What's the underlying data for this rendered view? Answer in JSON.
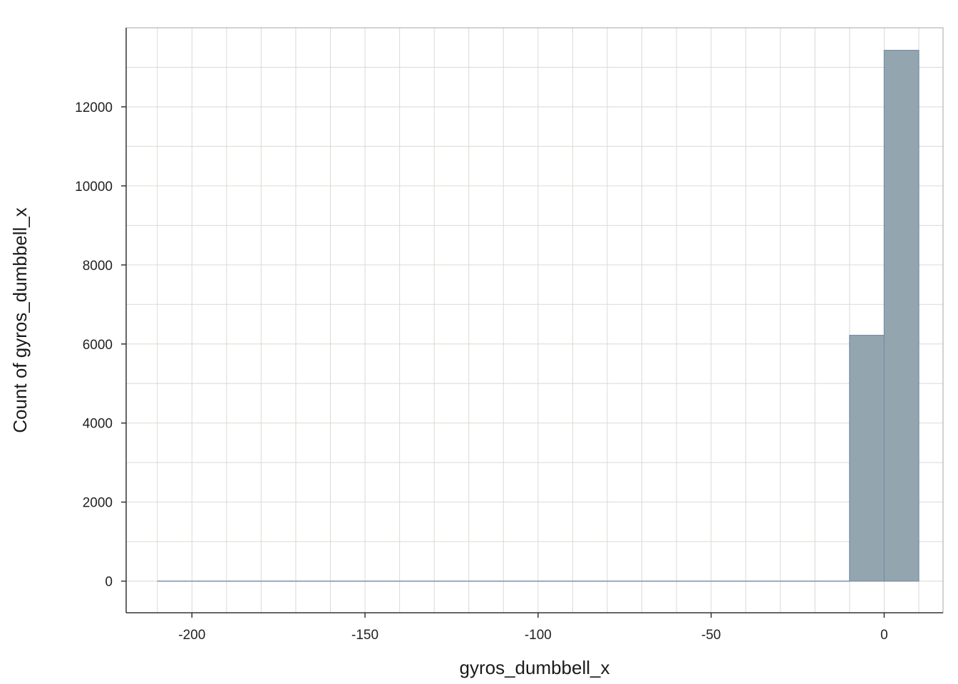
{
  "chart_data": {
    "type": "bar",
    "title": "",
    "xlabel": "gyros_dumbbell_x",
    "ylabel": "Count of gyros_dumbbell_x",
    "xlim": [
      -219,
      17
    ],
    "ylim": [
      -800,
      14000
    ],
    "x_ticks": [
      -200,
      -150,
      -100,
      -50,
      0
    ],
    "y_ticks": [
      0,
      2000,
      4000,
      6000,
      8000,
      10000,
      12000
    ],
    "x_minor_step": 10,
    "y_minor_step": 1000,
    "bin_width": 10,
    "bins": [
      {
        "x0": -210,
        "x1": -200,
        "count": 1
      },
      {
        "x0": -200,
        "x1": -190,
        "count": 0
      },
      {
        "x0": -190,
        "x1": -180,
        "count": 0
      },
      {
        "x0": -180,
        "x1": -170,
        "count": 0
      },
      {
        "x0": -170,
        "x1": -160,
        "count": 0
      },
      {
        "x0": -160,
        "x1": -150,
        "count": 0
      },
      {
        "x0": -150,
        "x1": -140,
        "count": 0
      },
      {
        "x0": -140,
        "x1": -130,
        "count": 0
      },
      {
        "x0": -130,
        "x1": -120,
        "count": 0
      },
      {
        "x0": -120,
        "x1": -110,
        "count": 0
      },
      {
        "x0": -110,
        "x1": -100,
        "count": 0
      },
      {
        "x0": -100,
        "x1": -90,
        "count": 0
      },
      {
        "x0": -90,
        "x1": -80,
        "count": 0
      },
      {
        "x0": -80,
        "x1": -70,
        "count": 0
      },
      {
        "x0": -70,
        "x1": -60,
        "count": 0
      },
      {
        "x0": -60,
        "x1": -50,
        "count": 0
      },
      {
        "x0": -50,
        "x1": -40,
        "count": 0
      },
      {
        "x0": -40,
        "x1": -30,
        "count": 0
      },
      {
        "x0": -30,
        "x1": -20,
        "count": 0
      },
      {
        "x0": -20,
        "x1": -10,
        "count": 5
      },
      {
        "x0": -10,
        "x1": 0,
        "count": 6220
      },
      {
        "x0": 0,
        "x1": 10,
        "count": 13430
      }
    ],
    "grid": true,
    "legend": "none",
    "colors": {
      "bar_fill": "#93a6b0",
      "bar_stroke": "#7a8ea8",
      "grid": "#dadad4",
      "axis": "#333333",
      "panel_border": "#a6a6a6"
    }
  }
}
